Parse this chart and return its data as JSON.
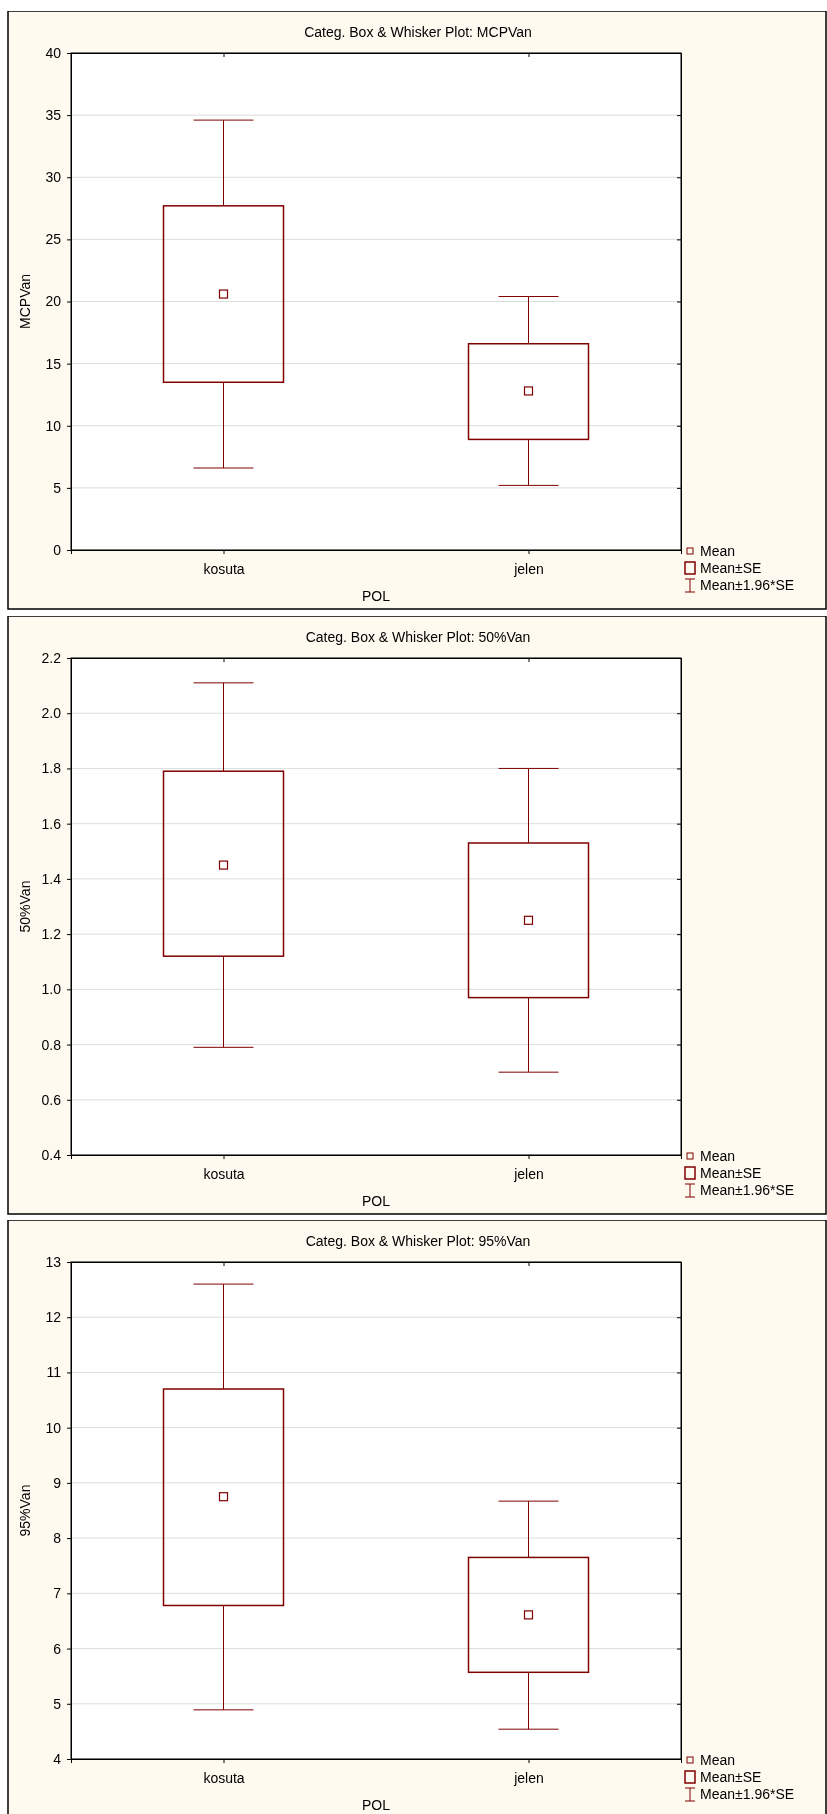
{
  "chart_data": [
    {
      "type": "box",
      "title": "Categ. Box & Whisker Plot:   MCPVan",
      "xlabel": "POL",
      "ylabel": "MCPVan",
      "categories": [
        "kosuta",
        "jelen"
      ],
      "color": "#800000",
      "boxes": [
        {
          "low": 6.6,
          "q1": 13.5,
          "median": 20.6,
          "q3": 27.7,
          "high": 34.6
        },
        {
          "low": 5.2,
          "q1": 8.9,
          "median": 12.8,
          "q3": 16.6,
          "high": 20.4
        }
      ],
      "ylim": [
        0,
        40
      ],
      "yticks": [
        0,
        5,
        10,
        15,
        20,
        25,
        30,
        35,
        40
      ],
      "grid": "y",
      "annotations": [
        "Mean",
        "Mean±SE",
        "Mean±1.96*SE"
      ]
    },
    {
      "type": "box",
      "title": "Categ. Box & Whisker Plot: 50%Van",
      "xlabel": "POL",
      "ylabel": "50%Van",
      "categories": [
        "kosuta",
        "jelen"
      ],
      "color": "#800000",
      "boxes": [
        {
          "low": 0.79,
          "q1": 1.12,
          "median": 1.45,
          "q3": 1.79,
          "high": 2.11
        },
        {
          "low": 0.7,
          "q1": 0.97,
          "median": 1.25,
          "q3": 1.53,
          "high": 1.8
        }
      ],
      "ylim": [
        0.4,
        2.2
      ],
      "yticks": [
        0.4,
        0.6,
        0.8,
        {
          "value": 1,
          "label": "1.0"
        },
        1.2,
        1.4,
        1.6,
        1.8,
        {
          "value": 2,
          "label": "2.0"
        },
        2.2
      ],
      "grid": "y",
      "annotations": [
        "Mean",
        "Mean±SE",
        "Mean±1.96*SE"
      ]
    },
    {
      "type": "box",
      "title": "Categ. Box & Whisker Plot: 95%Van",
      "xlabel": "POL",
      "ylabel": "95%Van",
      "categories": [
        "kosuta",
        "jelen"
      ],
      "color": "#800000",
      "boxes": [
        {
          "low": 4.89,
          "q1": 6.78,
          "median": 8.75,
          "q3": 10.7,
          "high": 12.6
        },
        {
          "low": 4.54,
          "q1": 5.57,
          "median": 6.61,
          "q3": 7.65,
          "high": 8.67
        }
      ],
      "ylim": [
        4,
        13
      ],
      "yticks": [
        4,
        5,
        6,
        7,
        8,
        9,
        10,
        11,
        12,
        13
      ],
      "grid": "y",
      "annotations": [
        "Mean",
        "Mean±SE",
        "Mean±1.96*SE"
      ]
    }
  ]
}
